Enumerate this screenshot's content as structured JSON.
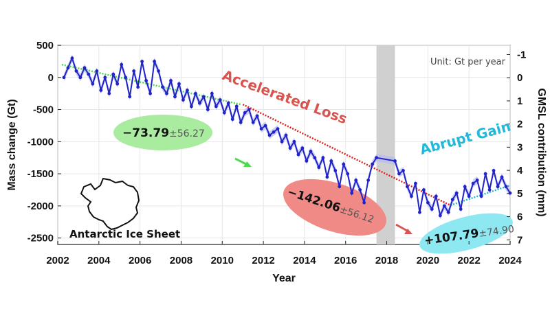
{
  "chart_data": {
    "type": "line",
    "xlabel": "Year",
    "ylabel": "Mass change (Gt)",
    "y2label": "GMSL contribution (mm)",
    "xlim": [
      2002,
      2024
    ],
    "ylim": [
      -2600,
      500
    ],
    "y2lim": [
      -1.4,
      7.2
    ],
    "xticks": [
      "2002",
      "2004",
      "2006",
      "2008",
      "2010",
      "2012",
      "2014",
      "2016",
      "2018",
      "2020",
      "2022",
      "2024"
    ],
    "yticks": [
      "500",
      "0",
      "-500",
      "-1000",
      "-1500",
      "-2000",
      "-2500"
    ],
    "y2ticks": [
      "-1",
      "0",
      "1",
      "2",
      "3",
      "4",
      "5",
      "6",
      "7"
    ],
    "grid": true,
    "unit_note": "Unit: Gt per year",
    "data_gap": [
      2017.5,
      2018.4
    ],
    "series": [
      {
        "color": "#1f23c8",
        "x": [
          2002.3,
          2002.5,
          2002.7,
          2002.9,
          2003.1,
          2003.3,
          2003.5,
          2003.7,
          2003.9,
          2004.1,
          2004.3,
          2004.5,
          2004.7,
          2004.9,
          2005.1,
          2005.3,
          2005.5,
          2005.7,
          2005.9,
          2006.1,
          2006.3,
          2006.5,
          2006.7,
          2006.9,
          2007.1,
          2007.3,
          2007.5,
          2007.7,
          2007.9,
          2008.1,
          2008.3,
          2008.5,
          2008.7,
          2008.9,
          2009.1,
          2009.3,
          2009.5,
          2009.7,
          2009.9,
          2010.1,
          2010.3,
          2010.5,
          2010.7,
          2010.9,
          2011.1,
          2011.3,
          2011.5,
          2011.7,
          2011.9,
          2012.1,
          2012.3,
          2012.5,
          2012.7,
          2012.9,
          2013.1,
          2013.3,
          2013.5,
          2013.7,
          2013.9,
          2014.1,
          2014.3,
          2014.5,
          2014.7,
          2014.9,
          2015.1,
          2015.3,
          2015.5,
          2015.7,
          2015.9,
          2016.1,
          2016.3,
          2016.5,
          2016.7,
          2016.9,
          2017.1,
          2017.3,
          2017.5,
          2018.4,
          2018.6,
          2018.8,
          2019.0,
          2019.2,
          2019.4,
          2019.6,
          2019.8,
          2020.0,
          2020.2,
          2020.4,
          2020.6,
          2020.8,
          2021.0,
          2021.2,
          2021.4,
          2021.6,
          2021.8,
          2022.0,
          2022.2,
          2022.4,
          2022.6,
          2022.8,
          2023.0,
          2023.2,
          2023.4,
          2023.6,
          2023.8,
          2024.0
        ],
        "y": [
          0,
          150,
          300,
          100,
          0,
          150,
          50,
          -100,
          100,
          -200,
          0,
          -250,
          50,
          -100,
          200,
          0,
          -300,
          100,
          -150,
          250,
          -50,
          -250,
          250,
          100,
          -150,
          -250,
          -50,
          -300,
          -100,
          -350,
          -200,
          -450,
          -250,
          -400,
          -300,
          -500,
          -250,
          -450,
          -350,
          -550,
          -400,
          -650,
          -450,
          -700,
          -550,
          -500,
          -700,
          -600,
          -800,
          -750,
          -900,
          -850,
          -800,
          -1000,
          -900,
          -1100,
          -1000,
          -1200,
          -1100,
          -1300,
          -1150,
          -1250,
          -1400,
          -1250,
          -1550,
          -1300,
          -1450,
          -1700,
          -1350,
          -1500,
          -1800,
          -1600,
          -1750,
          -1950,
          -1600,
          -1350,
          -1250,
          -1300,
          -1500,
          -1450,
          -1700,
          -1850,
          -1650,
          -2100,
          -1750,
          -1950,
          -2050,
          -1850,
          -2150,
          -2000,
          -2100,
          -1900,
          -1800,
          -2050,
          -1700,
          -1850,
          -1650,
          -1600,
          -1850,
          -1500,
          -1750,
          -1450,
          -1700,
          -1550,
          -1700,
          -1800
        ]
      }
    ],
    "trends": [
      {
        "color": "#4cd94c",
        "x": [
          2002.2,
          2010.9
        ],
        "y": [
          200,
          -420
        ]
      },
      {
        "color": "#e02020",
        "x": [
          2011.0,
          2021.1
        ],
        "y": [
          -420,
          -1990
        ]
      },
      {
        "color": "#22b8c8",
        "x": [
          2021.1,
          2024.0
        ],
        "y": [
          -1990,
          -1680
        ]
      }
    ],
    "annotations": {
      "phase_loss": "Accelerated Loss",
      "phase_gain": "Abrupt Gain",
      "rate_1_value": "−73.79",
      "rate_1_unc": "±56.27",
      "rate_2_value": "−142.06",
      "rate_2_unc": "±56.12",
      "rate_3_value": "+107.79",
      "rate_3_unc": "±74.90",
      "map_caption": "Antarctic Ice Sheet"
    },
    "colors": {
      "series": "#1f23c8",
      "band": "#b8bcec",
      "gap": "#d0d0d0",
      "green": "#4cd94c",
      "red": "#e02020",
      "cyan": "#22b8c8",
      "loss_text": "#d9534f",
      "gain_text": "#22b8d8",
      "ellipse_green": "#a9ec9f",
      "ellipse_red": "#f08a86",
      "ellipse_cyan": "#8ee8f2"
    }
  }
}
